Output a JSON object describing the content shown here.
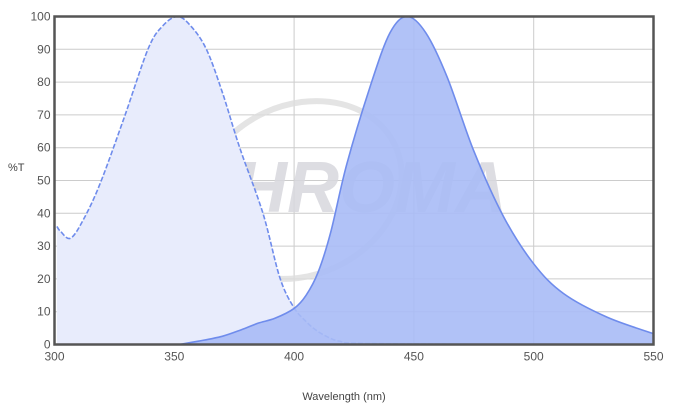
{
  "chart_data": {
    "type": "area",
    "xlabel": "Wavelength (nm)",
    "ylabel": "%T",
    "xlim": [
      300,
      550
    ],
    "ylim": [
      0,
      100
    ],
    "xticks": [
      "300",
      "350",
      "400",
      "450",
      "500",
      "550"
    ],
    "yticks": [
      "0",
      "10",
      "20",
      "30",
      "40",
      "50",
      "60",
      "70",
      "80",
      "90",
      "100"
    ],
    "grid": true,
    "watermark": "CHROMA",
    "series": [
      {
        "style": "dashed",
        "color": "#6f8cec",
        "fill": "#e8ecfc",
        "x": [
          301,
          302.5,
          306.7,
          312,
          319,
          329,
          339,
          345,
          351.3,
          357,
          363.4,
          370,
          377.3,
          387,
          394,
          399.8,
          405,
          409.3,
          414,
          419,
          430,
          500
        ],
        "y": [
          36,
          34.5,
          32.4,
          38,
          49,
          69,
          90,
          97,
          100,
          97,
          90,
          77,
          60,
          40,
          20.5,
          11.4,
          7,
          4.3,
          2.3,
          1,
          0.3,
          0
        ]
      },
      {
        "style": "solid",
        "color": "#6f8cec",
        "fill": "#a9bbf6",
        "x": [
          352,
          360,
          370,
          378,
          385,
          392,
          400,
          405,
          410,
          415.2,
          422,
          431.9,
          440,
          447.2,
          455,
          463.9,
          475,
          487.4,
          500,
          512.5,
          530.7,
          550
        ],
        "y": [
          0,
          1,
          2.5,
          4.5,
          6.5,
          8,
          11,
          15,
          22,
          34,
          55,
          79,
          95,
          100,
          95,
          81.5,
          59,
          39,
          24.6,
          15.5,
          8.3,
          3.3
        ]
      }
    ]
  }
}
